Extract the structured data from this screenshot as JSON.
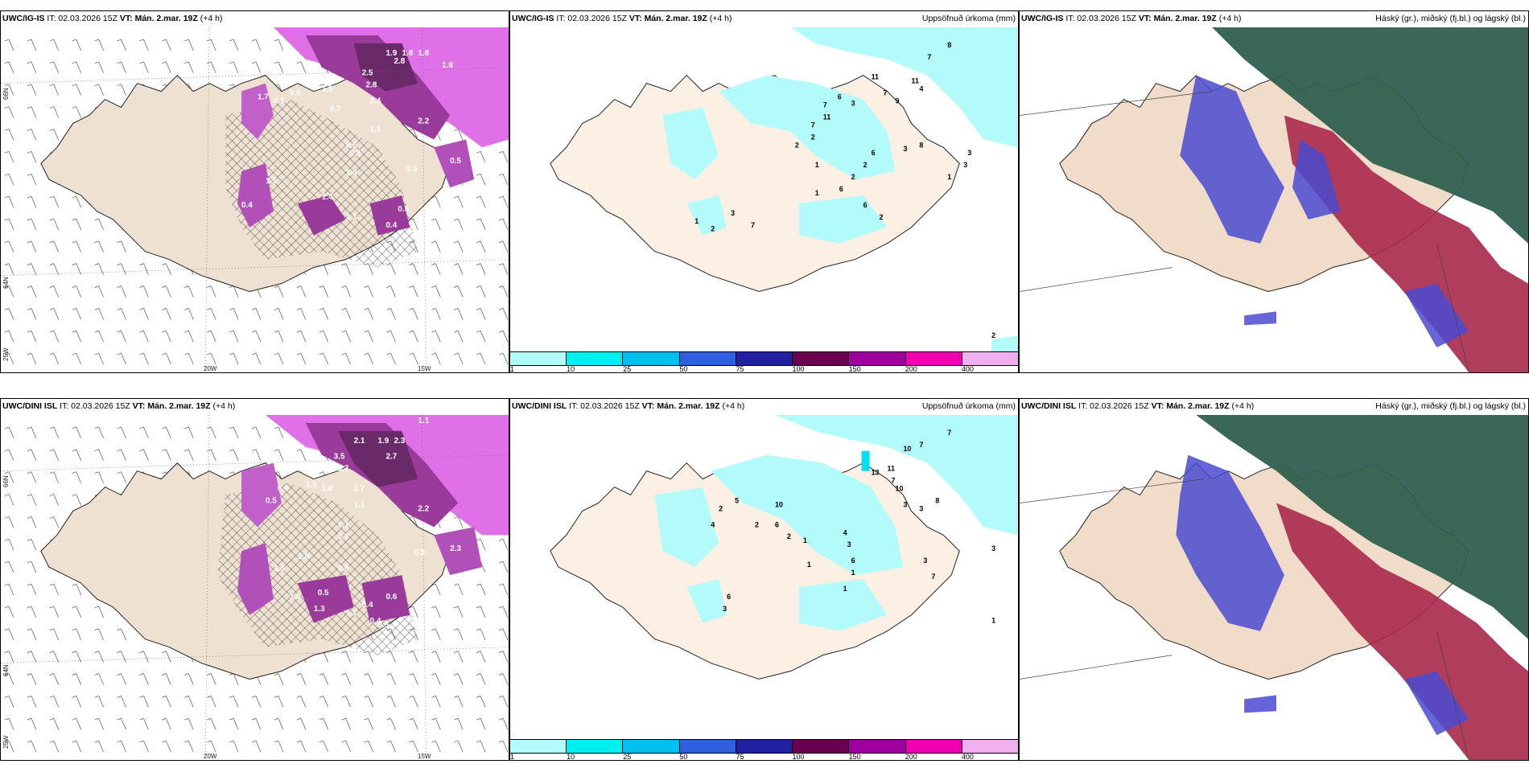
{
  "panels": [
    {
      "id": "wind-precip-ig",
      "model": "UWC/IG-IS",
      "init": "IT: 02.03.2026 15Z",
      "valid": "VT: Mán. 2.mar. 19Z",
      "lead": "(+4 h)",
      "right_title": "",
      "lat_labels": [
        "66N",
        "64N",
        "25W"
      ],
      "lon_labels": [
        "20W",
        "15W"
      ],
      "values": [
        "1.9",
        "1.8",
        "1.8",
        "2.8",
        "2.5",
        "1.8",
        "2.8",
        "1.5",
        "2.4",
        "1.7",
        "0.5",
        "0.9",
        "0.7",
        "2.2",
        "1.1",
        "0.6",
        "0.5",
        "0.3",
        "0.5",
        "1.4",
        "1.5",
        "0.4",
        "1.4",
        "1.1",
        "0.5",
        "0.4"
      ]
    },
    {
      "id": "accum-precip-ig",
      "model": "UWC/IG-IS",
      "init": "IT: 02.03.2026 15Z",
      "valid": "VT: Mán. 2.mar. 19Z",
      "lead": "(+4 h)",
      "right_title": "Uppsöfnuð úrkoma (mm)",
      "values": [
        "8",
        "7",
        "11",
        "11",
        "4",
        "7",
        "6",
        "9",
        "7",
        "3",
        "11",
        "7",
        "2",
        "8",
        "1",
        "6",
        "2",
        "3",
        "3",
        "2",
        "3",
        "1",
        "2",
        "6",
        "1",
        "3",
        "7",
        "1",
        "2",
        "6",
        "2",
        "2"
      ],
      "legend": [
        "1",
        "10",
        "25",
        "50",
        "75",
        "100",
        "150",
        "200",
        "400"
      ],
      "legend_colors": [
        "#b3fbfb",
        "#00f0f0",
        "#00c0f0",
        "#3060e0",
        "#2020a0",
        "#6a0050",
        "#a000a0",
        "#f000b0",
        "#f0b0f0"
      ]
    },
    {
      "id": "cloud-ig",
      "model": "UWC/IG-IS",
      "init": "IT: 02.03.2026 15Z",
      "valid": "VT: Mán. 2.mar. 19Z",
      "lead": "(+4 h)",
      "right_title": "Háský (gr.), miðský (fj.bl.) og lágský (bl.)"
    },
    {
      "id": "wind-precip-dini",
      "model": "UWC/DINI ISL",
      "init": "IT: 02.03.2026 15Z",
      "valid": "VT: Mán. 2.mar. 19Z",
      "lead": "(+4 h)",
      "right_title": "",
      "lat_labels": [
        "66N",
        "64N",
        "25W"
      ],
      "lon_labels": [
        "20W",
        "15W"
      ],
      "values": [
        "1.1",
        "2.1",
        "1.9",
        "2.3",
        "3.5",
        "2.7",
        "3.7",
        "2.3",
        "1.5",
        "1.8",
        "2.7",
        "1.1",
        "0.5",
        "0.6",
        "2.2",
        "1.1",
        "0.7",
        "0.3",
        "1.8",
        "0.8",
        "2.3",
        "1.6",
        "0.5",
        "0.4",
        "0.6",
        "1.3",
        "1.1",
        "0.5",
        "0.4",
        "0.7",
        "1.0"
      ]
    },
    {
      "id": "accum-precip-dini",
      "model": "UWC/DINI ISL",
      "init": "IT: 02.03.2026 15Z",
      "valid": "VT: Mán. 2.mar. 19Z",
      "lead": "(+4 h)",
      "right_title": "Uppsöfnuð úrkoma (mm)",
      "values": [
        "7",
        "7",
        "10",
        "13",
        "11",
        "7",
        "10",
        "8",
        "3",
        "3",
        "2",
        "5",
        "10",
        "4",
        "2",
        "6",
        "2",
        "1",
        "1",
        "4",
        "3",
        "6",
        "1",
        "3",
        "3",
        "7",
        "1",
        "6",
        "3",
        "1"
      ],
      "legend": [
        "1",
        "10",
        "25",
        "50",
        "75",
        "100",
        "150",
        "200",
        "400"
      ],
      "legend_colors": [
        "#b3fbfb",
        "#00f0f0",
        "#00c0f0",
        "#3060e0",
        "#2020a0",
        "#6a0050",
        "#a000a0",
        "#f000b0",
        "#f0b0f0"
      ]
    },
    {
      "id": "cloud-dini",
      "model": "UWC/DINI ISL",
      "init": "IT: 02.03.2026 15Z",
      "valid": "VT: Mán. 2.mar. 19Z",
      "lead": "(+4 h)",
      "right_title": "Háský (gr.), miðský (fj.bl.) og lágský (bl.)"
    }
  ]
}
